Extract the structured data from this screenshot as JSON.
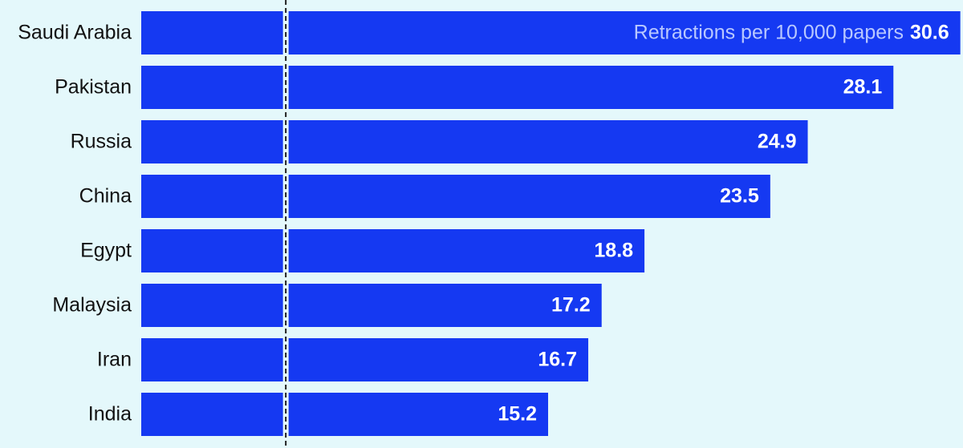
{
  "chart_data": {
    "type": "bar",
    "orientation": "horizontal",
    "categories": [
      "Saudi Arabia",
      "Pakistan",
      "Russia",
      "China",
      "Egypt",
      "Malaysia",
      "Iran",
      "India"
    ],
    "values": [
      30.6,
      28.1,
      24.9,
      23.5,
      18.8,
      17.2,
      16.7,
      15.2
    ],
    "color": "#1539f2",
    "annotation": "Retractions per 10,000 papers",
    "reference_value": 5.4,
    "xlim": [
      0,
      30.7
    ]
  }
}
